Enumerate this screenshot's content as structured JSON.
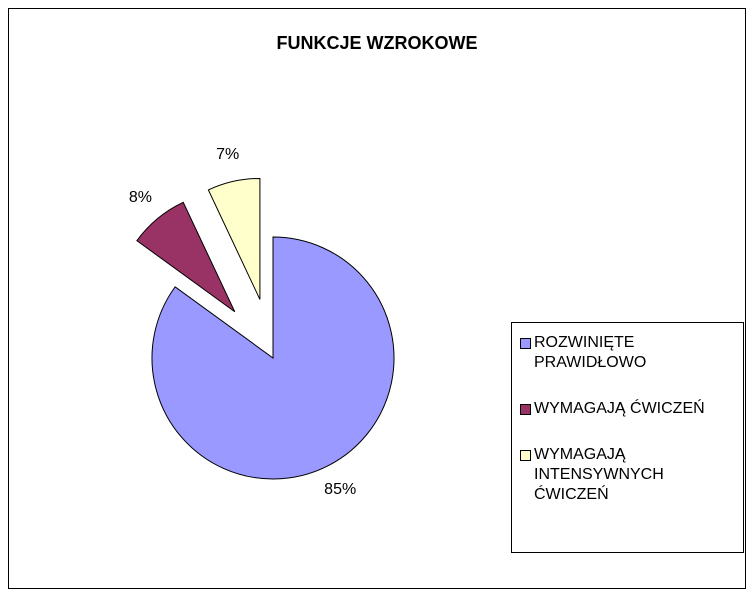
{
  "chart_data": {
    "type": "pie",
    "title": "FUNKCJE WZROKOWE",
    "categories": [
      "ROZWINIĘTE PRAWIDŁOWO",
      "WYMAGAJĄ ĆWICZEŃ",
      "WYMAGAJĄ INTENSYWNYCH ĆWICZEŃ"
    ],
    "values": [
      85,
      8,
      7
    ],
    "value_labels": [
      "85%",
      "8%",
      "7%"
    ],
    "colors": [
      "#9999ff",
      "#993366",
      "#ffffcc"
    ],
    "legend": "right"
  }
}
